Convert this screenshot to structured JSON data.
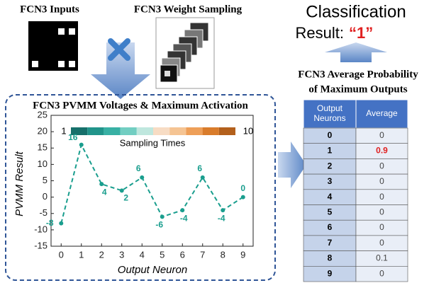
{
  "labels": {
    "inputs": "FCN3 Inputs",
    "weight_sampling": "FCN3 Weight Sampling",
    "classification": "Classification",
    "result_prefix": "Result:",
    "result_value": "“1”",
    "table_title_1": "FCN3 Average Probability",
    "table_title_2": "of Maximum Outputs",
    "panel_title": "FCN3 PVMM Voltages & Maximum Activation"
  },
  "chart_data": {
    "type": "line",
    "x_label": "Output Neuron",
    "y_label": "PVMM Result",
    "x": [
      0,
      1,
      2,
      3,
      4,
      5,
      6,
      7,
      8,
      9
    ],
    "series": [
      {
        "color": "#1a9e8e",
        "values": [
          -8,
          16,
          4,
          2,
          6,
          -6,
          -4,
          6,
          -4,
          0
        ]
      }
    ],
    "xlim": [
      -0.5,
      9.5
    ],
    "xticks": [
      0,
      1,
      2,
      3,
      4,
      5,
      6,
      7,
      8,
      9
    ],
    "ylim": [
      -15,
      25
    ],
    "yticks": [
      -15,
      -10,
      -5,
      0,
      5,
      10,
      15,
      20,
      25
    ],
    "colorbar": {
      "title": "Sampling Times",
      "range": [
        1,
        10
      ],
      "colors": [
        "#16706b",
        "#21948a",
        "#38b0a4",
        "#72cec2",
        "#bfe7de",
        "#f7dcc4",
        "#f5c493",
        "#ee9f58",
        "#d97c2b",
        "#b3601c"
      ]
    }
  },
  "table": {
    "header": [
      "Output Neurons",
      "Average"
    ],
    "rows": [
      [
        0,
        0
      ],
      [
        1,
        0.9
      ],
      [
        2,
        0
      ],
      [
        3,
        0
      ],
      [
        4,
        0
      ],
      [
        5,
        0
      ],
      [
        6,
        0
      ],
      [
        7,
        0
      ],
      [
        8,
        0.1
      ],
      [
        9,
        0
      ]
    ]
  }
}
